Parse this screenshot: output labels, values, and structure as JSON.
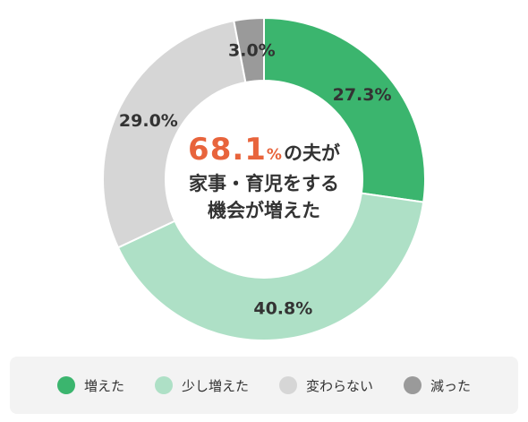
{
  "chart_data": {
    "type": "pie",
    "categories": [
      "増えた",
      "少し増えた",
      "変わらない",
      "減った"
    ],
    "values": [
      27.3,
      40.8,
      29.0,
      3.0
    ],
    "value_labels": [
      "27.3%",
      "40.8%",
      "29.0%",
      "3.0%"
    ],
    "colors": [
      "#3bb56e",
      "#aee0c6",
      "#d6d6d6",
      "#9a9a9a"
    ],
    "donut": true,
    "legend_position": "bottom",
    "center_text": {
      "highlight_value": "68.1",
      "highlight_unit": "%",
      "line1_rest": "の夫が",
      "line2": "家事・育児をする",
      "line3": "機会が増えた"
    }
  }
}
